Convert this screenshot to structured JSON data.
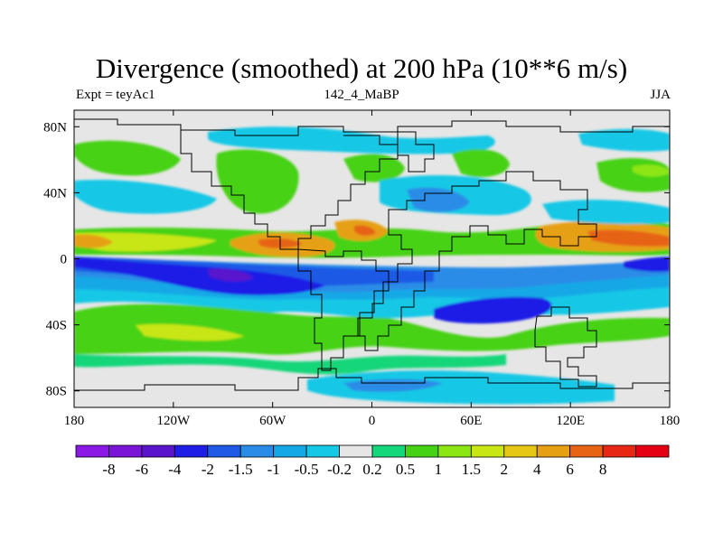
{
  "chart_data": {
    "type": "heatmap",
    "title": "Divergence (smoothed) at 200 hPa (10**6 m/s)",
    "subtitle_left": "Expt = teyAc1",
    "subtitle_center": "142_4_MaBP",
    "subtitle_right": "JJA",
    "x_ticks": [
      {
        "value": -180,
        "label": "180"
      },
      {
        "value": -120,
        "label": "120W"
      },
      {
        "value": -60,
        "label": "60W"
      },
      {
        "value": 0,
        "label": "0"
      },
      {
        "value": 60,
        "label": "60E"
      },
      {
        "value": 120,
        "label": "120E"
      },
      {
        "value": 180,
        "label": "180"
      }
    ],
    "y_ticks": [
      {
        "value": 80,
        "label": "80N"
      },
      {
        "value": 40,
        "label": "40N"
      },
      {
        "value": 0,
        "label": "0"
      },
      {
        "value": -40,
        "label": "40S"
      },
      {
        "value": -80,
        "label": "80S"
      }
    ],
    "xlim": [
      -180,
      180
    ],
    "ylim": [
      -90,
      90
    ],
    "colorbar": {
      "colors": [
        "#8a19e6",
        "#7a14d6",
        "#5a14cc",
        "#1e1ee6",
        "#1f5ae6",
        "#2a8ce6",
        "#14a8e6",
        "#14c8e6",
        "#e6e6e6",
        "#14d67a",
        "#46d214",
        "#8ce614",
        "#c8e614",
        "#e6c814",
        "#e6a014",
        "#e66414",
        "#e62814",
        "#e60014"
      ],
      "labels": [
        "-8",
        "-6",
        "-4",
        "-2",
        "-1.5",
        "-1",
        "-0.5",
        "-0.2",
        "0.2",
        "0.5",
        "1",
        "1.5",
        "2",
        "4",
        "6",
        "8"
      ]
    },
    "features": [
      {
        "name": "equatorial-convergence-band",
        "lon": [
          -180,
          180
        ],
        "lat": [
          -25,
          -2
        ],
        "value": -2
      },
      {
        "name": "tropical-divergence-band",
        "lon": [
          -180,
          180
        ],
        "lat": [
          2,
          18
        ],
        "value": 1.5
      },
      {
        "name": "south-pacific-strong-convergence",
        "lon": [
          -150,
          -50
        ],
        "lat": [
          -30,
          -5
        ],
        "value": -4
      },
      {
        "name": "south-indian-strong-convergence",
        "lon": [
          60,
          110
        ],
        "lat": [
          -40,
          -20
        ],
        "value": -4
      },
      {
        "name": "central-america-divergence",
        "lon": [
          -80,
          -40
        ],
        "lat": [
          0,
          20
        ],
        "value": 4
      },
      {
        "name": "west-pacific-divergence",
        "lon": [
          120,
          170
        ],
        "lat": [
          0,
          20
        ],
        "value": 4
      },
      {
        "name": "southern-midlatitude-divergence",
        "lon": [
          -170,
          40
        ],
        "lat": [
          -50,
          -30
        ],
        "value": 0.5
      }
    ]
  }
}
